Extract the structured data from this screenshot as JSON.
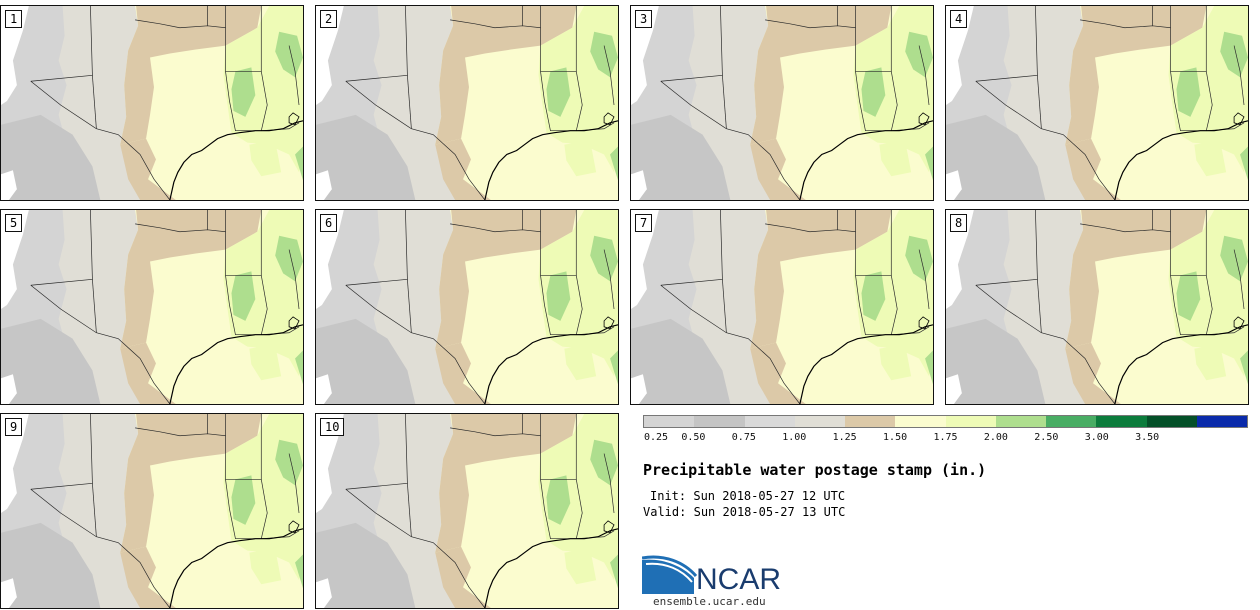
{
  "title": "Precipitable water postage stamp (in.)",
  "init": "Sun 2018-05-27 12 UTC",
  "valid": "Sun 2018-05-27 13 UTC",
  "init_label": "Init:",
  "valid_label": "Valid:",
  "logo_text": "NCAR",
  "url": "ensemble.ucar.edu",
  "members": [
    "1",
    "2",
    "3",
    "4",
    "5",
    "6",
    "7",
    "8",
    "9",
    "10"
  ],
  "colorbar": {
    "ticks": [
      "0.25",
      "0.50",
      "0.75",
      "1.00",
      "1.25",
      "1.50",
      "1.75",
      "2.00",
      "2.50",
      "3.00",
      "3.50"
    ],
    "colors": [
      "#d4d4d4",
      "#c4c4c4",
      "#d9d9d9",
      "#e0ded6",
      "#dcc9a8",
      "#fbfccf",
      "#eefbb6",
      "#aede8e",
      "#49ad64",
      "#0c7c3c",
      "#045028",
      "#0a2aaa"
    ]
  },
  "map_colors": {
    "dry_west": "#d4d4d4",
    "mid_grey": "#e0ded6",
    "tan": "#dcc9a8",
    "pale_yellow": "#fbfccf",
    "light_green": "#eefbb6",
    "green": "#aede8e",
    "terrain_dark": "#c6c6c6",
    "white": "#ffffff"
  }
}
